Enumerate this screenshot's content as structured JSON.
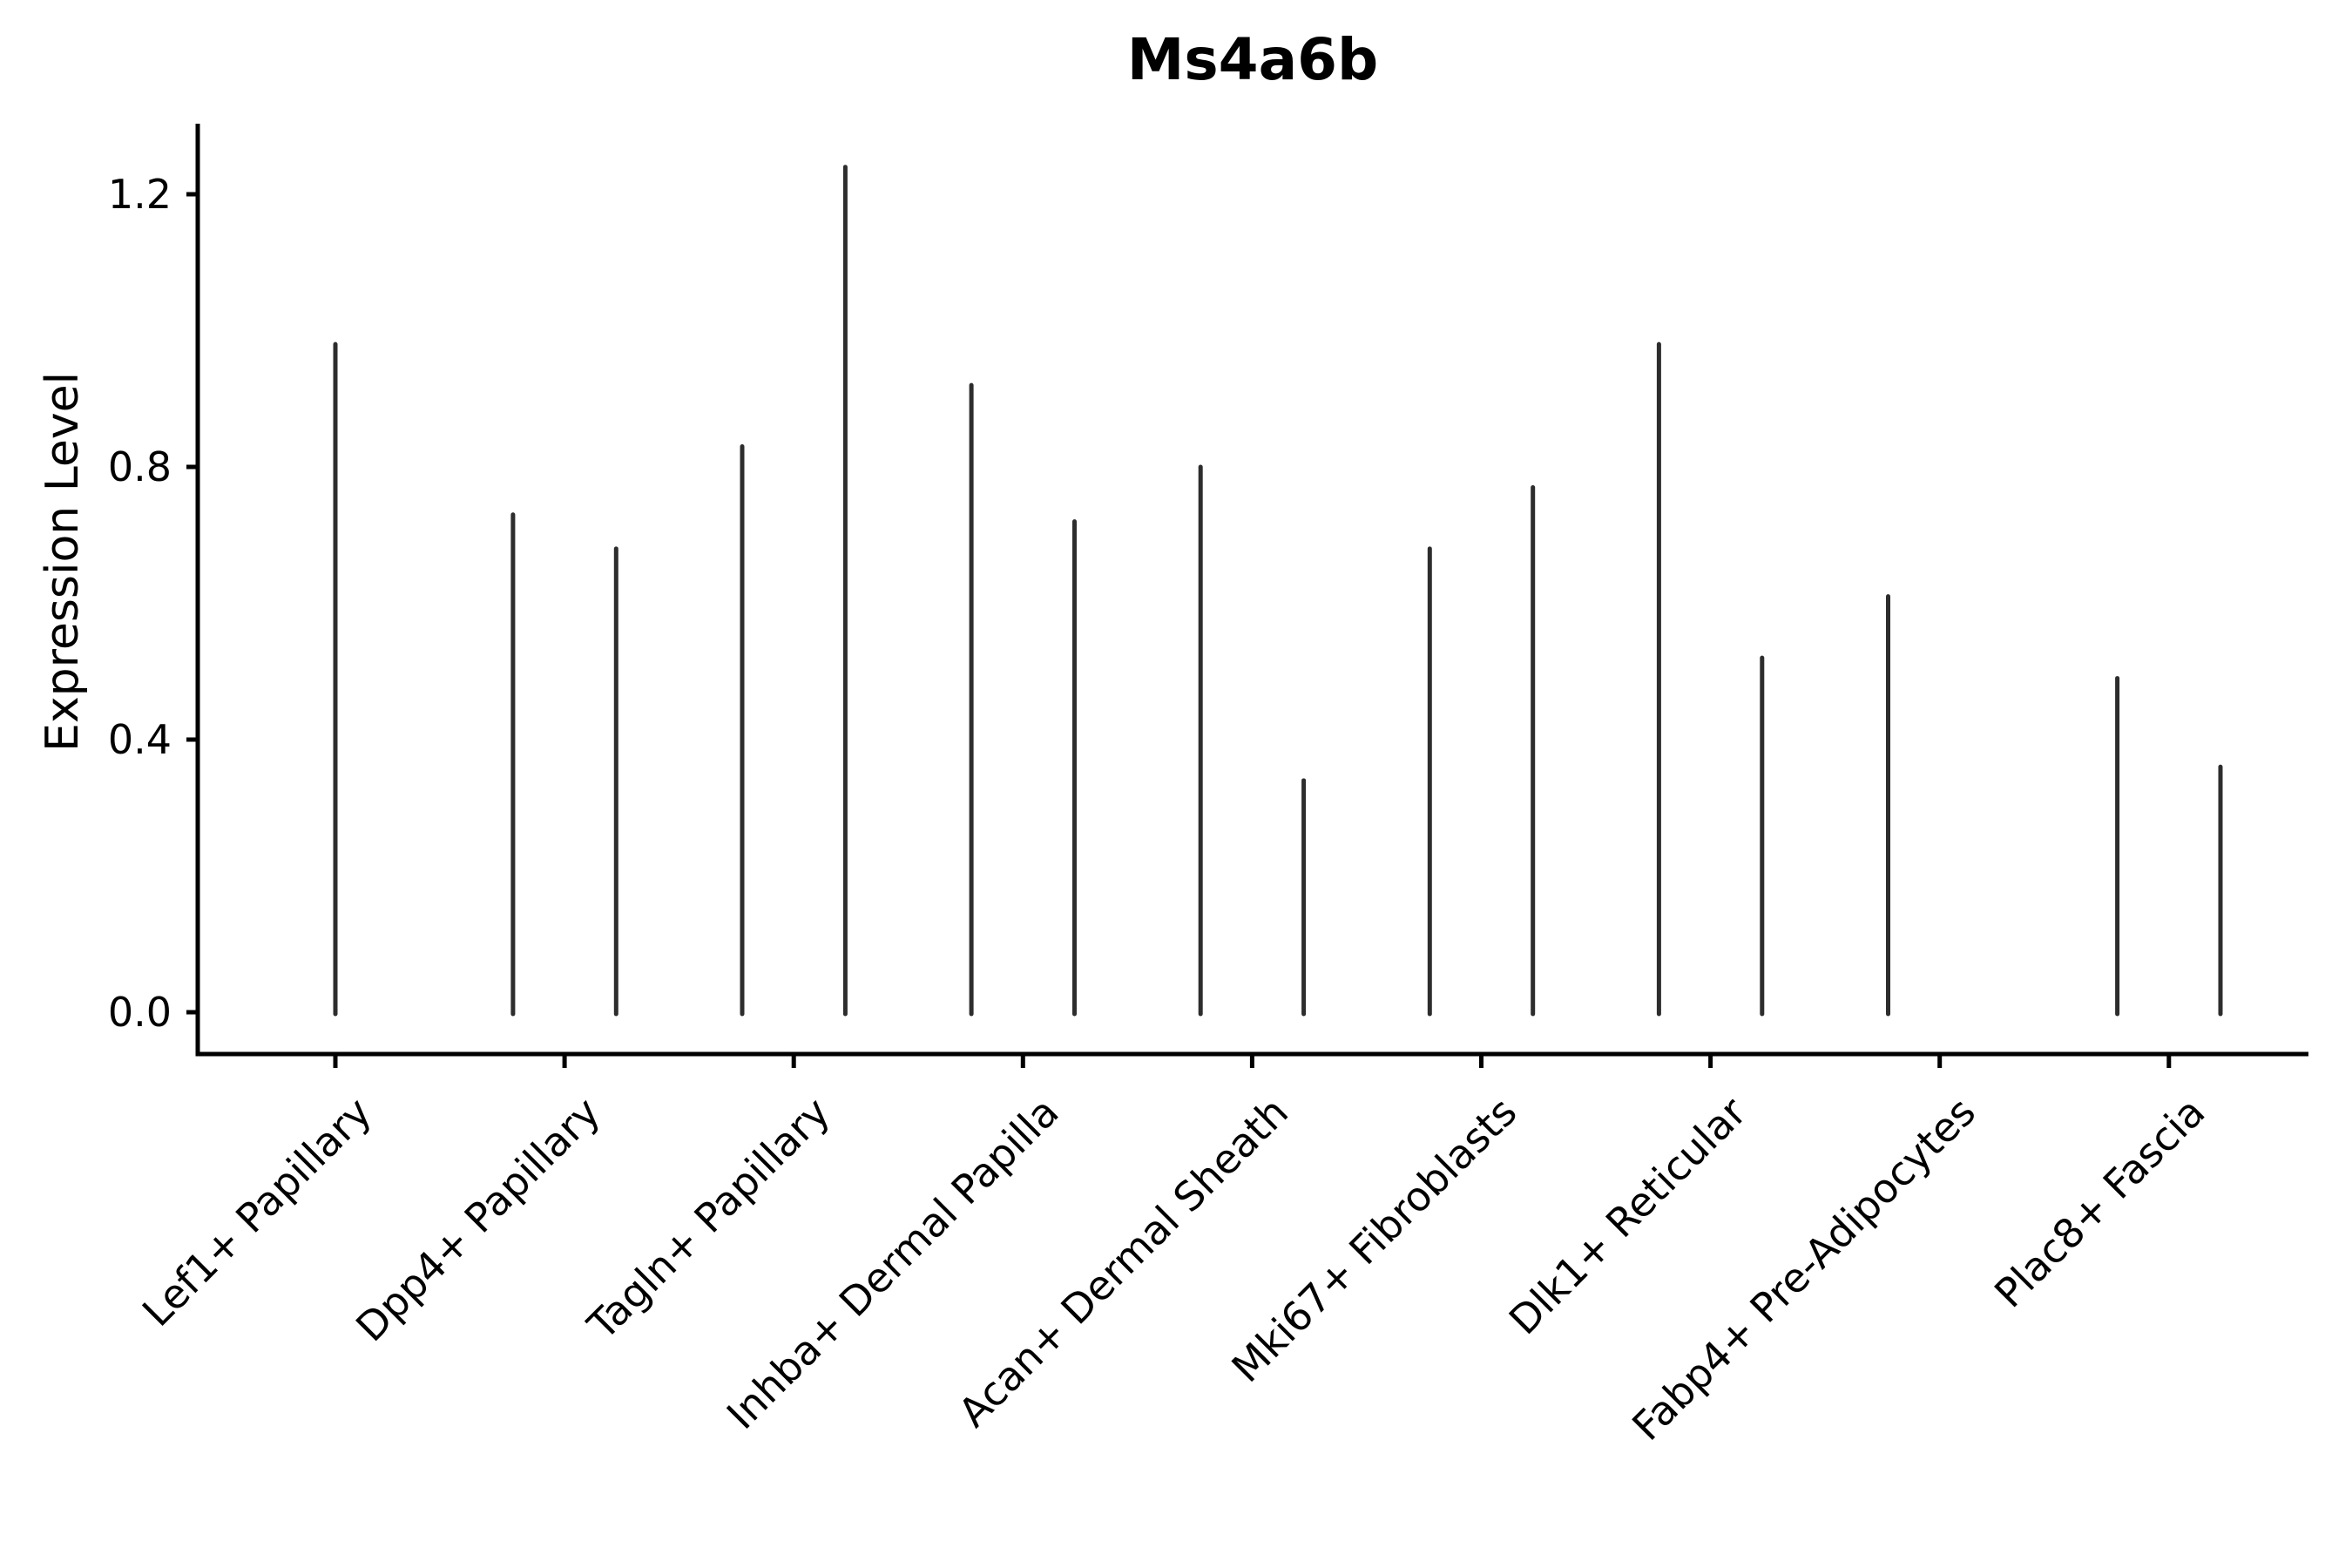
{
  "figure": {
    "background_color": "#ffffff",
    "axis_color": "#000000",
    "violin_color": "#2d2d2d",
    "violin_edge_fade_color": "#6e6e6e"
  },
  "chart_data": {
    "type": "violin",
    "title": "Ms4a6b",
    "ylabel": "Expression Level",
    "xlabel": "",
    "grid": false,
    "legend": "none",
    "ylim": [
      -0.06,
      1.3
    ],
    "y_ticks": [
      0.0,
      0.4,
      0.8,
      1.2
    ],
    "y_tick_labels": [
      "0.0",
      "0.4",
      "0.8",
      "1.2"
    ],
    "categories": [
      "Lef1+ Papillary",
      "Dpp4+ Papillary",
      "Tagln+ Papillary",
      "Inhba+ Dermal Papilla",
      "Acan+ Dermal Sheath",
      "Mki67+ Fibroblasts",
      "Dlk1+ Reticular",
      "Fabp4+ Pre-Adipocytes",
      "Plac8+ Fascia"
    ],
    "violins": [
      {
        "category": "Lef1+ Papillary",
        "base_halfwidth": 0.45,
        "spikes": [
          {
            "offset": 0.0,
            "max": 0.98
          }
        ]
      },
      {
        "category": "Dpp4+ Papillary",
        "base_halfwidth": 0.45,
        "spikes": [
          {
            "offset": -0.225,
            "max": 0.73
          },
          {
            "offset": 0.225,
            "max": 0.68
          }
        ]
      },
      {
        "category": "Tagln+ Papillary",
        "base_halfwidth": 0.45,
        "spikes": [
          {
            "offset": -0.225,
            "max": 0.83
          },
          {
            "offset": 0.225,
            "max": 1.24
          }
        ]
      },
      {
        "category": "Inhba+ Dermal Papilla",
        "base_halfwidth": 0.45,
        "spikes": [
          {
            "offset": -0.225,
            "max": 0.92
          },
          {
            "offset": 0.225,
            "max": 0.72
          }
        ]
      },
      {
        "category": "Acan+ Dermal Sheath",
        "base_halfwidth": 0.45,
        "spikes": [
          {
            "offset": -0.225,
            "max": 0.8
          },
          {
            "offset": 0.225,
            "max": 0.34
          }
        ]
      },
      {
        "category": "Mki67+ Fibroblasts",
        "base_halfwidth": 0.45,
        "spikes": [
          {
            "offset": -0.225,
            "max": 0.68
          },
          {
            "offset": 0.225,
            "max": 0.77
          }
        ]
      },
      {
        "category": "Dlk1+ Reticular",
        "base_halfwidth": 0.45,
        "spikes": [
          {
            "offset": -0.225,
            "max": 0.98
          },
          {
            "offset": 0.225,
            "max": 0.52
          }
        ]
      },
      {
        "category": "Fabp4+ Pre-Adipocytes",
        "base_halfwidth": 0.45,
        "spikes": [
          {
            "offset": -0.225,
            "max": 0.61
          }
        ]
      },
      {
        "category": "Plac8+ Fascia",
        "base_halfwidth": 0.45,
        "spikes": [
          {
            "offset": -0.225,
            "max": 0.49
          },
          {
            "offset": 0.225,
            "max": 0.36
          }
        ]
      }
    ]
  }
}
